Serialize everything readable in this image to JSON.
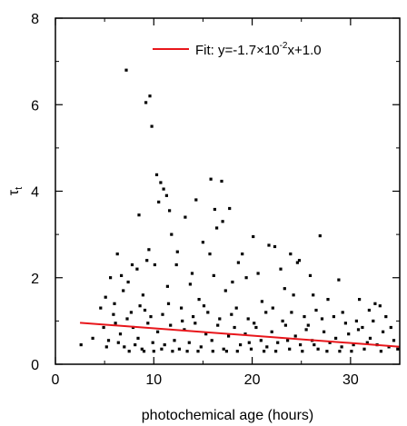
{
  "chart_data": {
    "type": "scatter",
    "xlabel": "photochemical age (hours)",
    "ylabel_main": "τ",
    "ylabel_sub": "t",
    "xlim": [
      0,
      35
    ],
    "ylim": [
      0,
      8
    ],
    "xticks": [
      0,
      10,
      20,
      30
    ],
    "yticks": [
      0,
      2,
      4,
      6,
      8
    ],
    "grid": false,
    "legend_placement": "top-right",
    "fit": {
      "label_prefix": "Fit: y=-1.7×10",
      "label_exponent": "-2",
      "label_suffix": "x+1.0",
      "slope": -0.017,
      "intercept": 1.0,
      "x_range": [
        2.5,
        35
      ],
      "color": "#e8161b"
    },
    "point_color": "#000000",
    "points": [
      [
        7.2,
        6.8
      ],
      [
        9.2,
        6.05
      ],
      [
        9.6,
        6.2
      ],
      [
        9.8,
        5.5
      ],
      [
        10.3,
        4.38
      ],
      [
        10.7,
        4.2
      ],
      [
        11.0,
        4.05
      ],
      [
        11.3,
        3.9
      ],
      [
        10.5,
        3.75
      ],
      [
        15.8,
        4.28
      ],
      [
        16.9,
        4.23
      ],
      [
        14.3,
        3.8
      ],
      [
        11.6,
        3.55
      ],
      [
        16.2,
        3.58
      ],
      [
        17.7,
        3.6
      ],
      [
        16.4,
        3.15
      ],
      [
        17.0,
        3.3
      ],
      [
        13.2,
        3.4
      ],
      [
        8.5,
        3.45
      ],
      [
        11.8,
        3.0
      ],
      [
        20.1,
        2.95
      ],
      [
        21.7,
        2.75
      ],
      [
        22.3,
        2.72
      ],
      [
        26.9,
        2.97
      ],
      [
        24.6,
        2.35
      ],
      [
        23.9,
        2.55
      ],
      [
        6.3,
        2.55
      ],
      [
        12.4,
        2.6
      ],
      [
        15.0,
        2.82
      ],
      [
        18.6,
        2.35
      ],
      [
        5.6,
        2.0
      ],
      [
        7.4,
        1.9
      ],
      [
        8.3,
        2.2
      ],
      [
        9.3,
        2.4
      ],
      [
        10.1,
        2.3
      ],
      [
        13.9,
        2.1
      ],
      [
        16.1,
        2.05
      ],
      [
        19.4,
        2.0
      ],
      [
        22.9,
        2.2
      ],
      [
        25.9,
        2.05
      ],
      [
        28.8,
        1.95
      ],
      [
        33.0,
        1.35
      ],
      [
        5.1,
        1.55
      ],
      [
        6.9,
        1.7
      ],
      [
        8.9,
        1.6
      ],
      [
        11.4,
        1.8
      ],
      [
        14.6,
        1.5
      ],
      [
        17.3,
        1.7
      ],
      [
        21.0,
        1.45
      ],
      [
        24.2,
        1.6
      ],
      [
        27.7,
        1.5
      ],
      [
        30.9,
        1.5
      ],
      [
        31.9,
        1.25
      ],
      [
        32.5,
        1.4
      ],
      [
        4.6,
        1.3
      ],
      [
        5.9,
        1.15
      ],
      [
        7.7,
        1.2
      ],
      [
        9.1,
        1.25
      ],
      [
        10.9,
        1.15
      ],
      [
        12.8,
        1.3
      ],
      [
        14.0,
        1.1
      ],
      [
        15.5,
        1.2
      ],
      [
        17.9,
        1.15
      ],
      [
        19.6,
        1.05
      ],
      [
        21.4,
        1.2
      ],
      [
        23.1,
        1.0
      ],
      [
        25.3,
        1.1
      ],
      [
        26.5,
        1.25
      ],
      [
        28.3,
        1.1
      ],
      [
        29.5,
        0.95
      ],
      [
        30.6,
        1.0
      ],
      [
        33.6,
        1.1
      ],
      [
        2.6,
        0.45
      ],
      [
        3.8,
        0.6
      ],
      [
        4.9,
        0.85
      ],
      [
        5.4,
        0.55
      ],
      [
        6.1,
        0.95
      ],
      [
        6.6,
        0.7
      ],
      [
        7.0,
        0.4
      ],
      [
        7.9,
        0.85
      ],
      [
        8.4,
        0.6
      ],
      [
        8.8,
        0.35
      ],
      [
        9.4,
        0.95
      ],
      [
        9.9,
        0.5
      ],
      [
        10.4,
        0.75
      ],
      [
        11.1,
        0.45
      ],
      [
        11.7,
        0.9
      ],
      [
        12.1,
        0.55
      ],
      [
        12.6,
        0.35
      ],
      [
        13.1,
        0.8
      ],
      [
        13.6,
        0.5
      ],
      [
        14.2,
        0.95
      ],
      [
        14.8,
        0.4
      ],
      [
        15.3,
        0.7
      ],
      [
        15.9,
        0.55
      ],
      [
        16.5,
        0.9
      ],
      [
        17.1,
        0.35
      ],
      [
        17.6,
        0.65
      ],
      [
        18.2,
        0.85
      ],
      [
        18.8,
        0.45
      ],
      [
        19.3,
        0.7
      ],
      [
        19.9,
        0.35
      ],
      [
        20.4,
        0.85
      ],
      [
        20.9,
        0.55
      ],
      [
        21.5,
        0.4
      ],
      [
        22.0,
        0.75
      ],
      [
        22.6,
        0.5
      ],
      [
        23.4,
        0.9
      ],
      [
        23.8,
        0.35
      ],
      [
        24.4,
        0.65
      ],
      [
        24.9,
        0.45
      ],
      [
        25.5,
        0.8
      ],
      [
        26.1,
        0.55
      ],
      [
        26.7,
        0.35
      ],
      [
        27.3,
        0.75
      ],
      [
        27.9,
        0.5
      ],
      [
        28.5,
        0.6
      ],
      [
        29.1,
        0.4
      ],
      [
        29.8,
        0.7
      ],
      [
        30.3,
        0.45
      ],
      [
        30.8,
        0.8
      ],
      [
        31.4,
        0.35
      ],
      [
        32.0,
        0.6
      ],
      [
        32.7,
        0.45
      ],
      [
        33.3,
        0.75
      ],
      [
        33.9,
        0.4
      ],
      [
        34.4,
        0.55
      ],
      [
        34.8,
        0.35
      ],
      [
        5.2,
        0.4
      ],
      [
        6.4,
        0.5
      ],
      [
        7.5,
        0.3
      ],
      [
        8.1,
        0.45
      ],
      [
        9.0,
        0.3
      ],
      [
        10.0,
        0.3
      ],
      [
        10.8,
        0.35
      ],
      [
        11.9,
        0.3
      ],
      [
        13.4,
        0.3
      ],
      [
        14.5,
        0.3
      ],
      [
        16.0,
        0.3
      ],
      [
        17.4,
        0.3
      ],
      [
        18.5,
        0.3
      ],
      [
        19.7,
        0.5
      ],
      [
        21.2,
        0.3
      ],
      [
        22.4,
        0.3
      ],
      [
        23.6,
        0.55
      ],
      [
        25.1,
        0.3
      ],
      [
        26.3,
        0.45
      ],
      [
        27.6,
        0.3
      ],
      [
        28.9,
        0.3
      ],
      [
        30.1,
        0.3
      ],
      [
        31.7,
        0.5
      ],
      [
        33.1,
        0.3
      ],
      [
        6.0,
        1.4
      ],
      [
        7.3,
        1.05
      ],
      [
        8.6,
        1.35
      ],
      [
        9.7,
        1.1
      ],
      [
        11.5,
        1.4
      ],
      [
        12.9,
        1.0
      ],
      [
        15.1,
        1.35
      ],
      [
        16.7,
        1.05
      ],
      [
        18.4,
        1.3
      ],
      [
        20.2,
        0.95
      ],
      [
        22.1,
        1.3
      ],
      [
        24.0,
        1.2
      ],
      [
        25.7,
        0.9
      ],
      [
        27.1,
        1.05
      ],
      [
        29.2,
        1.2
      ],
      [
        31.2,
        0.85
      ],
      [
        32.3,
        1.0
      ],
      [
        34.1,
        0.85
      ],
      [
        12.3,
        2.3
      ],
      [
        13.7,
        1.85
      ],
      [
        15.7,
        2.55
      ],
      [
        18.0,
        1.9
      ],
      [
        20.6,
        2.1
      ],
      [
        23.3,
        1.75
      ],
      [
        26.2,
        1.6
      ],
      [
        9.5,
        2.65
      ],
      [
        7.8,
        2.3
      ],
      [
        6.7,
        2.05
      ],
      [
        19.0,
        2.55
      ],
      [
        24.8,
        2.4
      ]
    ]
  }
}
